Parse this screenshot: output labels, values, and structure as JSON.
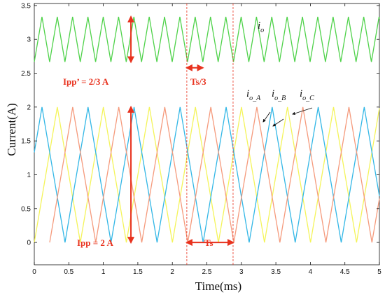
{
  "chart_data": {
    "type": "line",
    "title": "",
    "xlabel": "Time(ms)",
    "ylabel": "Current(A)",
    "xlim": [
      0,
      5
    ],
    "ylim": [
      -0.33,
      3.53
    ],
    "xticks": [
      "0",
      "0.5",
      "1",
      "1.5",
      "2",
      "2.5",
      "3",
      "3.5",
      "4",
      "4.5",
      "5"
    ],
    "yticks": [
      "0",
      "0.5",
      "1",
      "1.5",
      "2",
      "2.5",
      "3",
      "3.5"
    ],
    "grid": false,
    "switching_period_ms": 0.667,
    "series": [
      {
        "name": "i_o_A",
        "color": "#f4f45a",
        "min": 0,
        "max": 2,
        "period_ms": 0.667,
        "phase_ms": 0.0
      },
      {
        "name": "i_o_B",
        "color": "#33b7e6",
        "min": 0,
        "max": 2,
        "period_ms": 0.667,
        "phase_ms": 0.222
      },
      {
        "name": "i_o_C",
        "color": "#f59a7c",
        "min": 0,
        "max": 2,
        "period_ms": 0.667,
        "phase_ms": 0.444
      },
      {
        "name": "i_o",
        "color": "#4fd24a",
        "min": 2.667,
        "max": 3.333,
        "period_ms": 0.222,
        "phase_ms": 0.0
      }
    ],
    "annotations": {
      "ipp_total": "Ipp’ = 2/3 A",
      "ts_third": "Ts/3",
      "ipp_phase": "Ipp = 2 A",
      "ts": "Ts",
      "io_main": "i",
      "io_main_sub": "o",
      "io_a": "i",
      "io_a_sub": "o_A",
      "io_b": "i",
      "io_b_sub": "o_B",
      "io_c": "i",
      "io_c_sub": "o_C"
    },
    "markers": {
      "ipp_x": 1.4,
      "ts_start": 2.21,
      "ts_end": 2.88,
      "ts3_end": 2.44
    },
    "colors": {
      "annotation": "#e8321e",
      "axis": "#111111"
    }
  }
}
